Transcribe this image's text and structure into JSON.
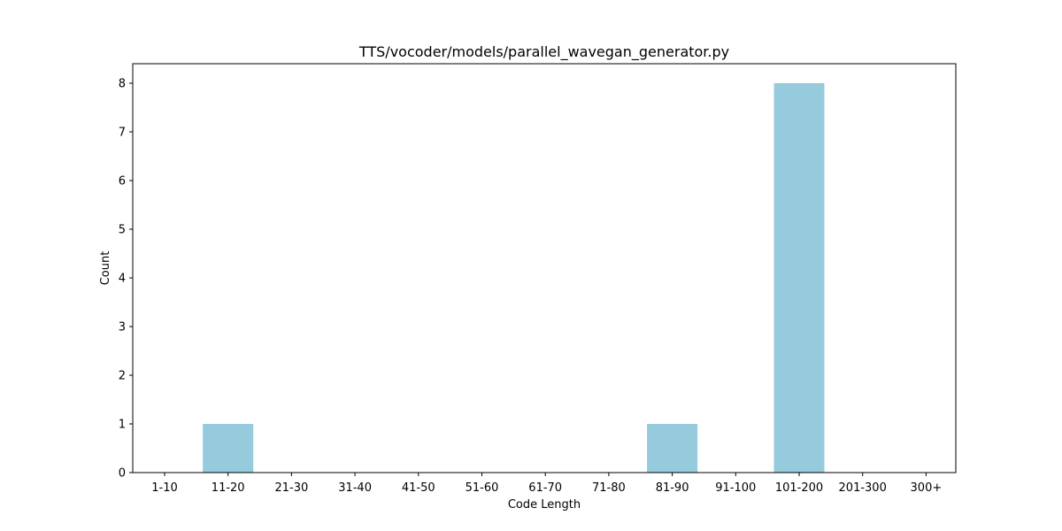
{
  "chart_data": {
    "type": "bar",
    "title": "TTS/vocoder/models/parallel_wavegan_generator.py",
    "xlabel": "Code Length",
    "ylabel": "Count",
    "categories": [
      "1-10",
      "11-20",
      "21-30",
      "31-40",
      "41-50",
      "51-60",
      "61-70",
      "71-80",
      "81-90",
      "91-100",
      "101-200",
      "201-300",
      "300+"
    ],
    "values": [
      0,
      1,
      0,
      0,
      0,
      0,
      0,
      0,
      1,
      0,
      8,
      0,
      0
    ],
    "ylim": [
      0,
      8.4
    ],
    "yticks": [
      0,
      1,
      2,
      3,
      4,
      5,
      6,
      7,
      8
    ],
    "bar_color": "#96cadd",
    "grid": false,
    "legend": false
  }
}
